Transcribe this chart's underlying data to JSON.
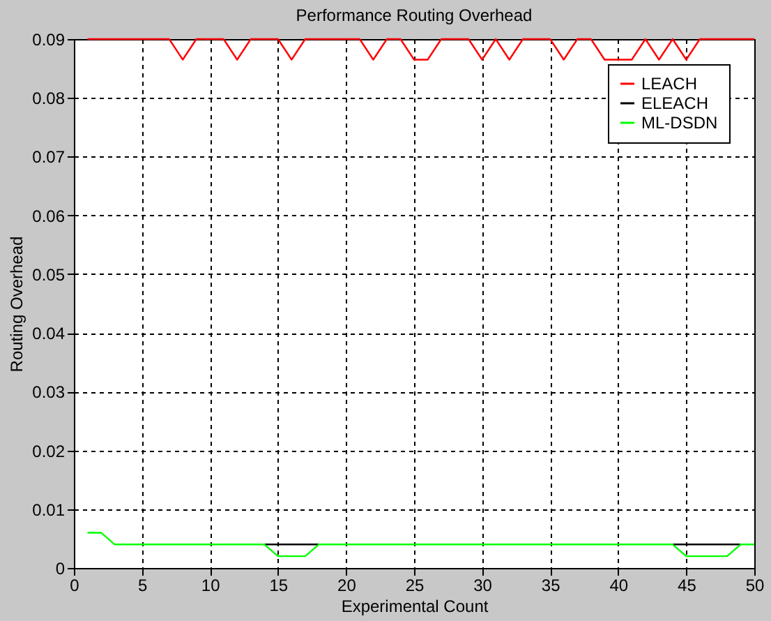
{
  "chart_data": {
    "type": "line",
    "title": "Performance Routing Overhead",
    "xlabel": "Experimental Count",
    "ylabel": "Routing Overhead",
    "x": [
      1,
      2,
      3,
      4,
      5,
      6,
      7,
      8,
      9,
      10,
      11,
      12,
      13,
      14,
      15,
      16,
      17,
      18,
      19,
      20,
      21,
      22,
      23,
      24,
      25,
      26,
      27,
      28,
      29,
      30,
      31,
      32,
      33,
      34,
      35,
      36,
      37,
      38,
      39,
      40,
      41,
      42,
      43,
      44,
      45,
      46,
      47,
      48,
      49,
      50
    ],
    "series": [
      {
        "name": "LEACH",
        "color": "#ff0000",
        "values": [
          0.09,
          0.09,
          0.09,
          0.09,
          0.09,
          0.09,
          0.09,
          0.0865,
          0.09,
          0.09,
          0.09,
          0.0865,
          0.09,
          0.09,
          0.09,
          0.0865,
          0.09,
          0.09,
          0.09,
          0.09,
          0.09,
          0.0865,
          0.09,
          0.09,
          0.0865,
          0.0865,
          0.09,
          0.09,
          0.09,
          0.0865,
          0.09,
          0.0865,
          0.09,
          0.09,
          0.09,
          0.0865,
          0.09,
          0.09,
          0.0865,
          0.0865,
          0.0865,
          0.09,
          0.0865,
          0.09,
          0.0865,
          0.09,
          0.09,
          0.09,
          0.09,
          0.09
        ]
      },
      {
        "name": "ELEACH",
        "color": "#000000",
        "values": [
          null,
          null,
          null,
          null,
          null,
          null,
          null,
          null,
          null,
          null,
          null,
          null,
          null,
          0.004,
          0.004,
          0.004,
          0.004,
          0.004,
          null,
          null,
          null,
          null,
          null,
          null,
          null,
          null,
          null,
          null,
          null,
          null,
          null,
          null,
          null,
          null,
          null,
          null,
          null,
          null,
          null,
          null,
          null,
          null,
          null,
          0.004,
          0.004,
          0.004,
          0.004,
          0.004,
          0.004,
          null
        ]
      },
      {
        "name": "ML-DSDN",
        "color": "#00ff00",
        "values": [
          0.006,
          0.006,
          0.004,
          0.004,
          0.004,
          0.004,
          0.004,
          0.004,
          0.004,
          0.004,
          0.004,
          0.004,
          0.004,
          0.004,
          0.002,
          0.002,
          0.002,
          0.004,
          0.004,
          0.004,
          0.004,
          0.004,
          0.004,
          0.004,
          0.004,
          0.004,
          0.004,
          0.004,
          0.004,
          0.004,
          0.004,
          0.004,
          0.004,
          0.004,
          0.004,
          0.004,
          0.004,
          0.004,
          0.004,
          0.004,
          0.004,
          0.004,
          0.004,
          0.004,
          0.002,
          0.002,
          0.002,
          0.002,
          0.004,
          0.004
        ]
      }
    ],
    "xlim": [
      0,
      50
    ],
    "xticks": [
      0,
      5,
      10,
      15,
      20,
      25,
      30,
      35,
      40,
      45,
      50
    ],
    "ylim": [
      0,
      0.09
    ],
    "yticks": [
      0,
      0.01,
      0.02,
      0.03,
      0.04,
      0.05,
      0.06,
      0.07,
      0.08,
      0.09
    ],
    "grid": true,
    "legend": "top right",
    "line_style": "solid",
    "marker": "none"
  }
}
